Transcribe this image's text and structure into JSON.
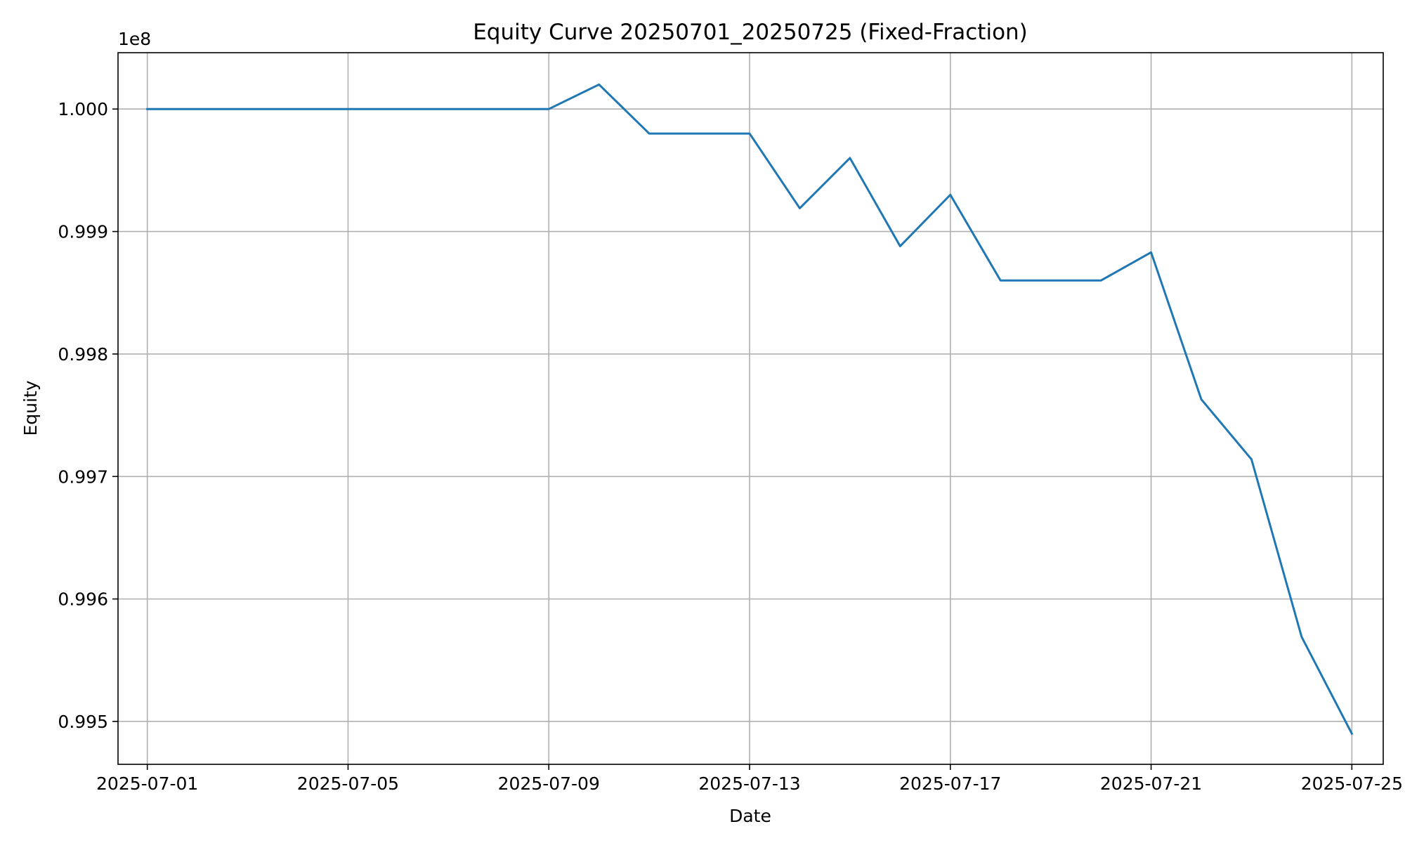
{
  "chart_data": {
    "type": "line",
    "title": "Equity Curve 20250701_20250725 (Fixed-Fraction)",
    "xlabel": "Date",
    "ylabel": "Equity",
    "y_offset_label": "1e8",
    "y_multiplier": 100000000,
    "grid": true,
    "legend": "none",
    "x_is_date": true,
    "xlim": [
      "2025-06-30T10:00",
      "2025-07-25T15:00"
    ],
    "ylim": [
      0.99465,
      1.00046
    ],
    "x_ticks": [
      "2025-07-01",
      "2025-07-05",
      "2025-07-09",
      "2025-07-13",
      "2025-07-17",
      "2025-07-21",
      "2025-07-25"
    ],
    "y_ticks": [
      0.995,
      0.996,
      0.997,
      0.998,
      0.999,
      1.0
    ],
    "y_tick_labels": [
      "0.995",
      "0.996",
      "0.997",
      "0.998",
      "0.999",
      "1.000"
    ],
    "series": [
      {
        "color": "#1f77b4",
        "x": [
          "2025-07-01",
          "2025-07-02",
          "2025-07-03",
          "2025-07-04",
          "2025-07-05",
          "2025-07-06",
          "2025-07-07",
          "2025-07-08",
          "2025-07-09",
          "2025-07-10",
          "2025-07-11",
          "2025-07-12",
          "2025-07-13",
          "2025-07-14",
          "2025-07-15",
          "2025-07-16",
          "2025-07-17",
          "2025-07-18",
          "2025-07-19",
          "2025-07-20",
          "2025-07-21",
          "2025-07-22",
          "2025-07-23",
          "2025-07-24",
          "2025-07-25"
        ],
        "y": [
          1.0,
          1.0,
          1.0,
          1.0,
          1.0,
          1.0,
          1.0,
          1.0,
          1.0,
          1.0002,
          0.9998,
          0.9998,
          0.9998,
          0.99919,
          0.9996,
          0.99888,
          0.9993,
          0.9986,
          0.9986,
          0.9986,
          0.99883,
          0.99763,
          0.99714,
          0.99569,
          0.9949
        ]
      }
    ]
  }
}
